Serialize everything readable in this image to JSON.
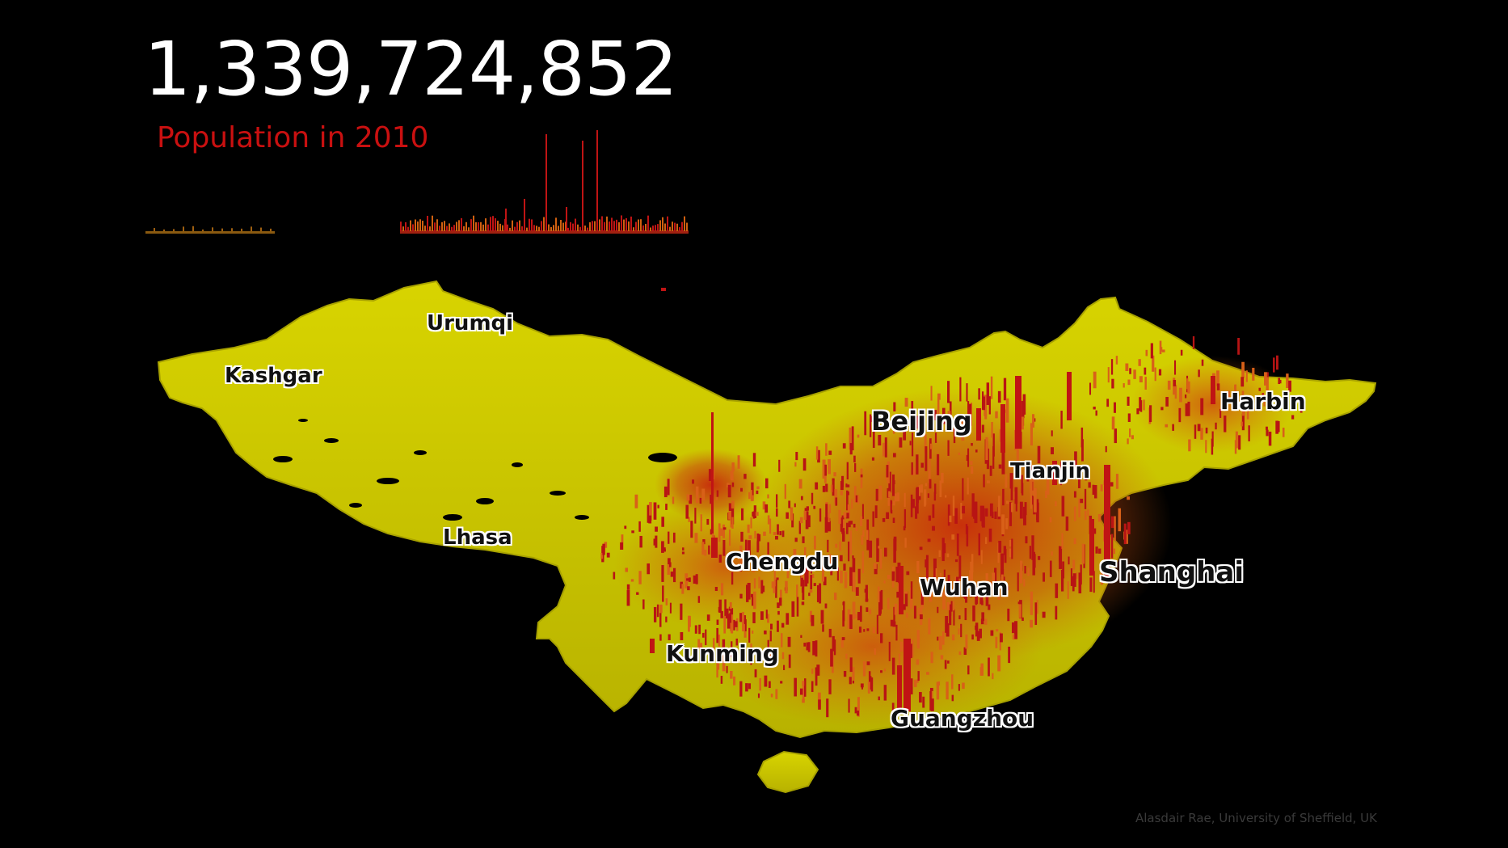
{
  "header": {
    "population_figure": "1,339,724,852",
    "subtitle": "Population in 2010"
  },
  "colors": {
    "background": "#000000",
    "land": "#c8c400",
    "land_dark": "#9e9a00",
    "density_high": "#c01414",
    "density_mid": "#d85a18",
    "title_text": "#ffffff",
    "subtitle_text": "#c91010"
  },
  "cities": [
    {
      "id": "urumqi",
      "name": "Urumqi"
    },
    {
      "id": "kashgar",
      "name": "Kashgar"
    },
    {
      "id": "beijing",
      "name": "Beijing"
    },
    {
      "id": "harbin",
      "name": "Harbin"
    },
    {
      "id": "tianjin",
      "name": "Tianjin"
    },
    {
      "id": "lhasa",
      "name": "Lhasa"
    },
    {
      "id": "chengdu",
      "name": "Chengdu"
    },
    {
      "id": "wuhan",
      "name": "Wuhan"
    },
    {
      "id": "shanghai",
      "name": "Shanghai"
    },
    {
      "id": "kunming",
      "name": "Kunming"
    },
    {
      "id": "guangzhou",
      "name": "Guangzhou"
    }
  ],
  "credit": "Alasdair Rae, University of Sheffield, UK"
}
